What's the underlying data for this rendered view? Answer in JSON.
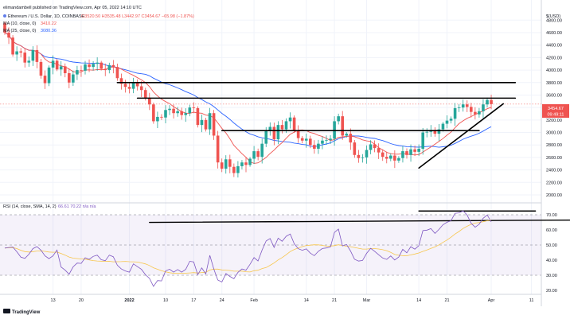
{
  "header": {
    "byline": "elimandambell published on TradingView.com, Apr 05, 2022 14:10 UTC",
    "title_line": "Ethereum / U.S. Dollar, 1D, COINBASE",
    "ohlc": "O3520.50  H3535.48  L3442.97  C3454.67  −65.98 (−1.87%)",
    "ma10": "MA (10, close, 0)",
    "ma10_value": "3410.22",
    "ma25": "MA (25, close, 0)",
    "ma25_value": "3080.36",
    "rsi": "RSI (14, close, SMA, 14, 2)",
    "rsi_values": "66.61  70.22  n/a  n/a",
    "currency": "USD"
  },
  "colors": {
    "up": "#26a69a",
    "down": "#ef5350",
    "ma10": "#ef5350",
    "ma25": "#2962ff",
    "rsi": "#7e57c2",
    "rsi_ma": "#f7c64c",
    "trendline": "#000000",
    "price_line": "#ef5350"
  },
  "price_labels": {
    "last": "3454.67",
    "countdown": "09:49:11"
  },
  "footer": {
    "brand": "TradingView"
  },
  "chart_data": [
    {
      "type": "candlestick",
      "title": "Ethereum / U.S. Dollar, 1D, COINBASE",
      "x_start": "2021-12-01",
      "x_ticks": [
        "13",
        "20",
        "2022",
        "10",
        "17",
        "24",
        "Feb",
        "14",
        "21",
        "Mar",
        "14",
        "21",
        "Apr",
        "11"
      ],
      "y_ticks": [
        2000,
        2200,
        2400,
        2600,
        2800,
        3000,
        3200,
        3400,
        3600,
        3800,
        4000,
        4200,
        4400,
        4600,
        4800
      ],
      "ylim": [
        2000,
        4950
      ],
      "last_price": 3454.67,
      "close": [
        4600,
        4520,
        4250,
        4300,
        4280,
        4120,
        4150,
        4320,
        4130,
        3910,
        3790,
        4040,
        4150,
        4010,
        4060,
        3950,
        3800,
        3930,
        4000,
        3990,
        4090,
        4050,
        4100,
        4120,
        4020,
        4000,
        4080,
        4050,
        3870,
        3780,
        3730,
        3700,
        3800,
        3740,
        3680,
        3550,
        3450,
        3180,
        3250,
        3240,
        3360,
        3380,
        3310,
        3340,
        3280,
        3310,
        3400,
        3390,
        3120,
        3200,
        3050,
        3310,
        2950,
        2520,
        2420,
        2570,
        2450,
        2350,
        2460,
        2520,
        2480,
        2580,
        2700,
        2610,
        2820,
        3030,
        3090,
        2890,
        3120,
        3050,
        3180,
        3240,
        3030,
        2910,
        2870,
        2900,
        2800,
        2740,
        2820,
        2870,
        2880,
        2900,
        3180,
        3260,
        2950,
        2980,
        2840,
        2640,
        2590,
        2600,
        2720,
        2810,
        2750,
        2680,
        2610,
        2580,
        2630,
        2550,
        2590,
        2700,
        2640,
        2730,
        2690,
        2740,
        3000,
        3010,
        3040,
        2980,
        3050,
        3140,
        3190,
        3220,
        3390,
        3400,
        3450,
        3410,
        3330,
        3290,
        3340,
        3450,
        3520,
        3454.67
      ],
      "ma10": {
        "name": "MA (10, close, 0)",
        "last": 3410.22
      },
      "ma25": {
        "name": "MA (25, close, 0)",
        "last": 3080.36
      },
      "horizontal_levels": [
        3800,
        3550,
        3030
      ],
      "support_trendline": {
        "from": [
          2430,
          "2022-03-14"
        ],
        "to": [
          3460,
          "2022-04-04"
        ]
      }
    },
    {
      "type": "line",
      "title": "RSI (14, close, SMA, 14, 2)",
      "y_ticks": [
        20,
        30,
        40,
        50,
        60,
        70
      ],
      "ylim": [
        17,
        78
      ],
      "bands": [
        70,
        50,
        30
      ],
      "rsi_last": 66.61,
      "rsi_ma_last": 70.22,
      "horizontal_levels": [
        72.5,
        66
      ]
    }
  ]
}
